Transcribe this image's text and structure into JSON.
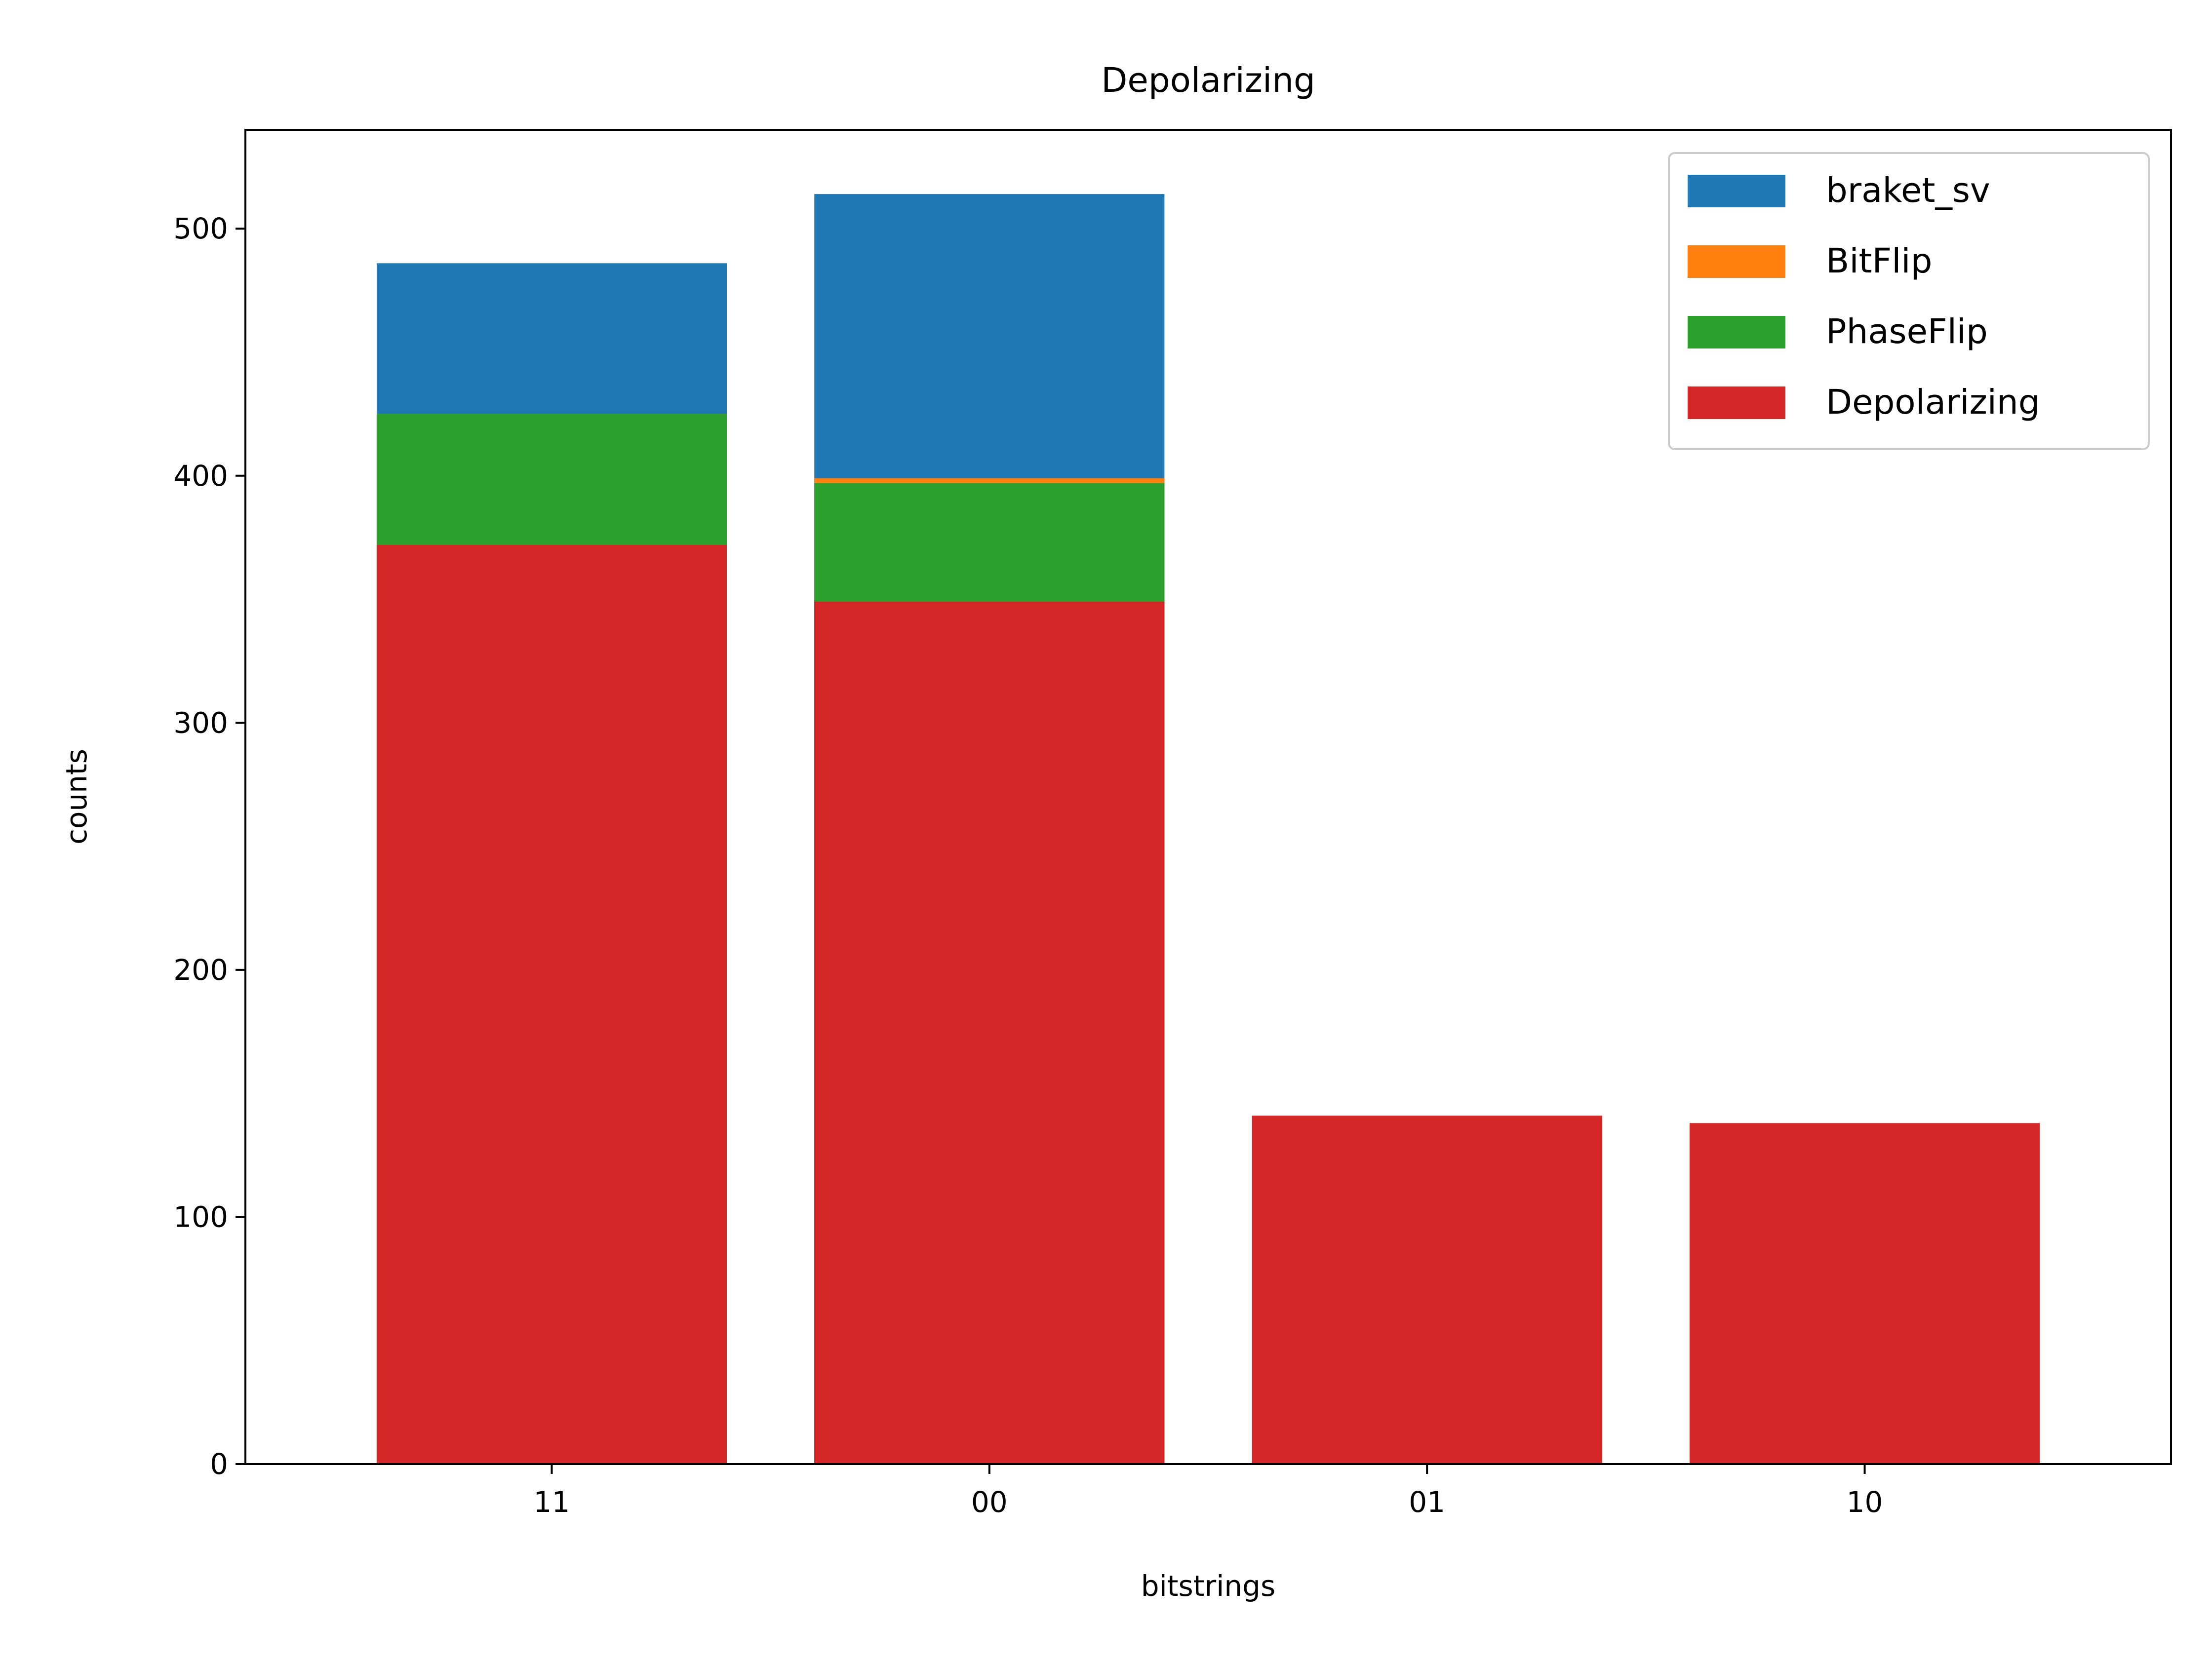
{
  "chart_data": {
    "type": "bar",
    "title": "Depolarizing",
    "xlabel": "bitstrings",
    "ylabel": "counts",
    "categories": [
      "11",
      "00",
      "01",
      "10"
    ],
    "ylim": [
      0,
      540
    ],
    "yticks": [
      0,
      100,
      200,
      300,
      400,
      500
    ],
    "grid": false,
    "legend_position": "top-right",
    "overlay": "overlapping (drawn in legend order, later series in front)",
    "series": [
      {
        "name": "braket_sv",
        "color": "#1f77b4",
        "values": [
          486,
          514,
          0,
          0
        ]
      },
      {
        "name": "BitFlip",
        "color": "#ff7f0e",
        "values": [
          425,
          399,
          0,
          0
        ]
      },
      {
        "name": "PhaseFlip",
        "color": "#2ca02c",
        "values": [
          425,
          397,
          0,
          0
        ]
      },
      {
        "name": "Depolarizing",
        "color": "#d62728",
        "values": [
          372,
          349,
          141,
          138
        ]
      }
    ]
  }
}
